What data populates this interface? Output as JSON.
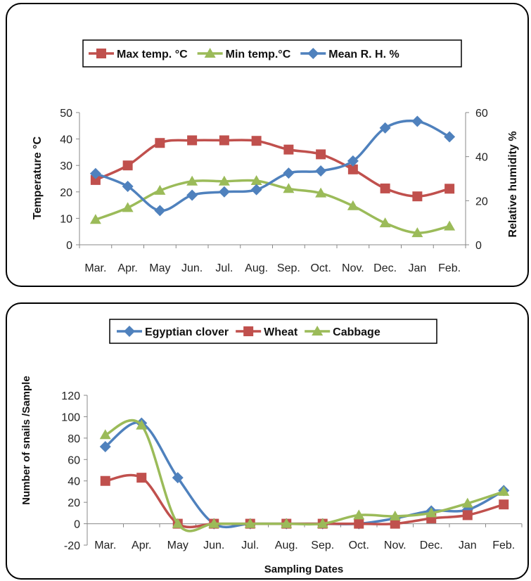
{
  "chart_data": [
    {
      "type": "line",
      "title": "",
      "categories": [
        "Mar.",
        "Apr.",
        "May",
        "Jun.",
        "Jul.",
        "Aug.",
        "Sep.",
        "Oct.",
        "Nov.",
        "Dec.",
        "Jan",
        "Feb."
      ],
      "ylabel": "Temperature  °C",
      "y2label": "Relative humidity %",
      "ylim": [
        0,
        50
      ],
      "y2lim": [
        0,
        60
      ],
      "yticks": [
        0,
        10,
        20,
        30,
        40,
        50
      ],
      "y2ticks": [
        0,
        20,
        40,
        60
      ],
      "legend_position": "top",
      "grid": false,
      "series": [
        {
          "name": "Max temp. °C",
          "axis": "left",
          "marker": "square",
          "color": "#c0504d",
          "values": [
            24.5,
            30,
            38.5,
            39.5,
            39.5,
            39.3,
            36,
            34.2,
            28.5,
            21.3,
            18.3,
            21.2
          ]
        },
        {
          "name": "Min temp.°C",
          "axis": "left",
          "marker": "triangle",
          "color": "#9bbb59",
          "values": [
            9.5,
            14,
            20.5,
            24,
            24,
            24.2,
            21.2,
            19.5,
            14.7,
            8.2,
            4.5,
            7
          ]
        },
        {
          "name": "Mean R. H. %",
          "axis": "right",
          "marker": "diamond",
          "color": "#4f81bd",
          "values": [
            32.3,
            26.5,
            15.5,
            22.5,
            24,
            25,
            32.5,
            33.5,
            38,
            53,
            56,
            49
          ]
        }
      ]
    },
    {
      "type": "line",
      "title": "",
      "categories": [
        "Mar.",
        "Apr.",
        "May",
        "Jun.",
        "Jul.",
        "Aug.",
        "Sep.",
        "Oct.",
        "Nov.",
        "Dec.",
        "Jan",
        "Feb."
      ],
      "xlabel": "Sampling Dates",
      "ylabel": "Number of snails /Sample",
      "ylim": [
        -20,
        120
      ],
      "yticks": [
        -20,
        0,
        20,
        40,
        60,
        80,
        100,
        120
      ],
      "legend_position": "top",
      "grid": false,
      "series": [
        {
          "name": "Egyptian clover",
          "marker": "diamond",
          "color": "#4f81bd",
          "values": [
            72,
            94,
            43,
            0,
            0,
            0,
            0,
            0,
            5,
            12,
            13,
            31
          ]
        },
        {
          "name": "Wheat",
          "marker": "square",
          "color": "#c0504d",
          "values": [
            40,
            43,
            0,
            0,
            0,
            0,
            0,
            0,
            0,
            5,
            8,
            18
          ]
        },
        {
          "name": "Cabbage",
          "marker": "triangle",
          "color": "#9bbb59",
          "values": [
            83,
            92,
            0,
            0,
            0,
            0,
            0,
            8,
            7,
            10,
            19,
            30
          ]
        }
      ]
    }
  ]
}
